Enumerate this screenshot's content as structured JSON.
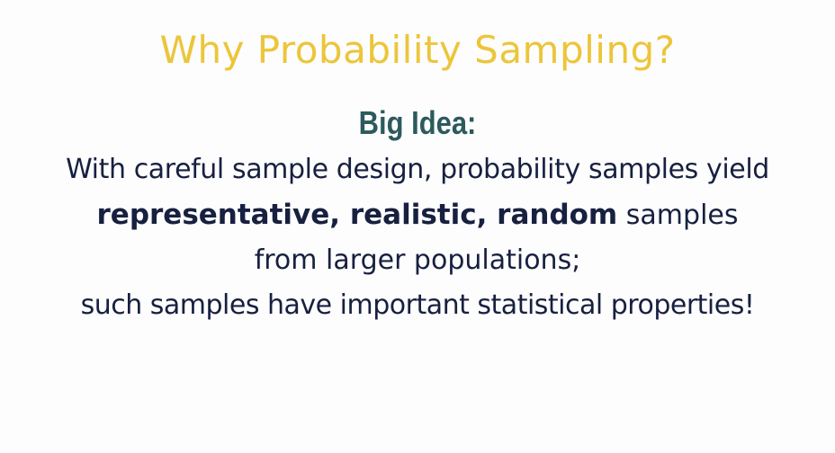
{
  "slide": {
    "title": "Why Probability Sampling?",
    "subtitle": "Big Idea:",
    "body": {
      "line1": "With careful sample design, probability samples yield",
      "line2_bold": "representative, realistic, random",
      "line2_rest": " samples",
      "line3": "from larger populations;",
      "line4": "such samples have important statistical properties!"
    }
  },
  "colors": {
    "title": "#ecc53a",
    "subtitle": "#2c5a5d",
    "body": "#17203f",
    "background": "#fdfdfe"
  }
}
